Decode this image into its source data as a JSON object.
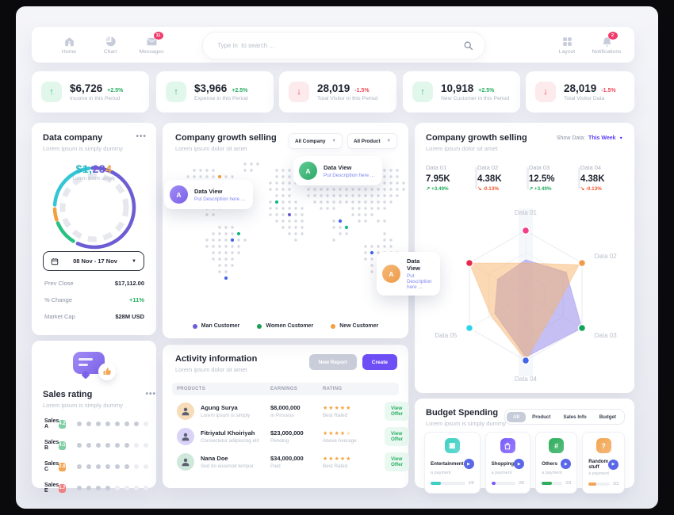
{
  "nav": {
    "items": [
      {
        "label": "Home",
        "icon": "home-icon",
        "badge": null
      },
      {
        "label": "Chart",
        "icon": "chart-icon",
        "badge": null
      },
      {
        "label": "Messages",
        "icon": "messages-icon",
        "badge": "11"
      }
    ],
    "search": {
      "placeholder": "Type in  to search ..."
    },
    "right_items": [
      {
        "label": "Layout",
        "icon": "layout-icon",
        "badge": null
      },
      {
        "label": "Notifications",
        "icon": "notifications-icon",
        "badge": "2"
      }
    ]
  },
  "stats": [
    {
      "value": "$6,726",
      "delta": "+2.5%",
      "label": "Income in this Period",
      "direction": "up"
    },
    {
      "value": "$3,966",
      "delta": "+2.5%",
      "label": "Expense in this Period",
      "direction": "up"
    },
    {
      "value": "28,019",
      "delta": "-1.5%",
      "label": "Total Visitor in this Period",
      "direction": "down"
    },
    {
      "value": "10,918",
      "delta": "+2.5%",
      "label": "New Customer in this Period",
      "direction": "up"
    },
    {
      "value": "28,019",
      "delta": "-1.5%",
      "label": "Total Visitor Data",
      "direction": "down"
    }
  ],
  "data_company": {
    "title": "Data company",
    "subtitle": "Lorem ipsum is simply dummy",
    "center_value_parts": [
      {
        "text": "$1,",
        "color": "#2bb8c4"
      },
      {
        "text": "23",
        "color": "#6c5dd3"
      },
      {
        "text": "4",
        "color": "#f2a03d"
      }
    ],
    "center_caption": "Lorem ipsum simply",
    "date_range": "08 Nov - 17 Nov",
    "rows": [
      {
        "label": "Prev Close",
        "value": "$17,112.00",
        "color": "#232734"
      },
      {
        "label": "% Change",
        "value": "+11%",
        "color": "#27ae60"
      },
      {
        "label": "Market Cap",
        "value": "$28M USD",
        "color": "#232734"
      }
    ]
  },
  "sales_rating": {
    "title": "Sales rating",
    "subtitle": "Lorem ipsum is simply dummy",
    "dots_total": 8,
    "rows": [
      {
        "label": "Sales A",
        "score": "4.2",
        "badge_color": "#7ed0a4",
        "filled": 7
      },
      {
        "label": "Sales B",
        "score": "4.1",
        "badge_color": "#7ed0a4",
        "filled": 6
      },
      {
        "label": "Sales C",
        "score": "2.8",
        "badge_color": "#f2a654",
        "filled": 6
      },
      {
        "label": "Sales E",
        "score": "1.7",
        "badge_color": "#ef8080",
        "filled": 4
      }
    ]
  },
  "growth_map": {
    "title": "Company growth selling",
    "subtitle": "Lorem ipsum dolor sit amet",
    "filters": [
      "All Company",
      "All Product"
    ],
    "callouts": [
      {
        "avatar": "A",
        "avatar_color1": "#a18cf5",
        "avatar_color2": "#7b61e8",
        "title": "Data View",
        "desc": "Put Description here ..."
      },
      {
        "avatar": "A",
        "avatar_color1": "#5ecb93",
        "avatar_color2": "#2fa76a",
        "title": "Data View",
        "desc": "Put Description here ..."
      },
      {
        "avatar": "A",
        "avatar_color1": "#f5b978",
        "avatar_color2": "#ee9a48",
        "title": "Data View",
        "desc": "Put Description here ..."
      }
    ],
    "legend": [
      {
        "label": "Man Customer",
        "color": "#6c5dd3"
      },
      {
        "label": "Women Customer",
        "color": "#1aa053"
      },
      {
        "label": "New Customer",
        "color": "#f2a03d"
      }
    ]
  },
  "activity": {
    "title": "Activity information",
    "subtitle": "Lorem ipsum dolor sit amet",
    "buttons": [
      {
        "label": "New Report",
        "style": "gray"
      },
      {
        "label": "Create",
        "style": "purple"
      }
    ],
    "columns": [
      "PRODUCTS",
      "EARNINGS",
      "RATING"
    ],
    "rows": [
      {
        "name": "Agung Surya",
        "desc": "Lorem ipsum is simply",
        "earning": "$8,000,000",
        "status": "In Process",
        "stars": 5,
        "rating_label": "Best Rated",
        "action": "View Offer",
        "avatar_bg": "#f6dcb8"
      },
      {
        "name": "Fitriyatul Khoiriyah",
        "desc": "Consectetur adipiscing elit",
        "earning": "$23,000,000",
        "status": "Pending",
        "stars": 4.5,
        "rating_label": "Above Average",
        "action": "View Offer",
        "avatar_bg": "#d9d3f8"
      },
      {
        "name": "Nana Doe",
        "desc": "Sed do eiusmod tempor",
        "earning": "$34,000,000",
        "status": "Paid",
        "stars": 5,
        "rating_label": "Best Rated",
        "action": "View Offer",
        "avatar_bg": "#cfe8dc"
      }
    ]
  },
  "growth_radar": {
    "title": "Company growth selling",
    "subtitle": "Lorem ipsum dolor sit amet",
    "show_data_label": "Show Data:",
    "show_data_value": "This Week",
    "stats": [
      {
        "label": "Data 01",
        "value": "7.95K",
        "delta": "+3.49%",
        "direction": "up"
      },
      {
        "label": "Data 02",
        "value": "4.38K",
        "delta": "-0.13%",
        "direction": "down"
      },
      {
        "label": "Data 03",
        "value": "12.5%",
        "delta": "+3.49%",
        "direction": "up"
      },
      {
        "label": "Data 04",
        "value": "4.38K",
        "delta": "-0.13%",
        "direction": "down"
      }
    ]
  },
  "budget": {
    "title": "Budget Spending",
    "subtitle": "Lorem ipsum is simply dummy",
    "tabs": [
      {
        "label": "All",
        "active": true
      },
      {
        "label": "Product",
        "active": false
      },
      {
        "label": "Sales Info",
        "active": false
      },
      {
        "label": "Budget",
        "active": false
      }
    ],
    "cards": [
      {
        "name": "Entertainment",
        "sub": "a payment",
        "fraction": "1/6",
        "progress": 0.3,
        "color": "#3fd0c3",
        "icon": "ticket-icon"
      },
      {
        "name": "Shopping",
        "sub": "a payment",
        "fraction": "2/6",
        "progress": 0.18,
        "color": "#7c5cfa",
        "icon": "bag-icon"
      },
      {
        "name": "Others",
        "sub": "a payment",
        "fraction": "2/3",
        "progress": 0.5,
        "color": "#2fae5d",
        "icon": "hash-icon"
      },
      {
        "name": "Random stuff",
        "sub": "a payment",
        "fraction": "3/3",
        "progress": 0.38,
        "color": "#f2a654",
        "icon": "question-icon"
      }
    ]
  },
  "chart_data": [
    {
      "type": "pie",
      "subtype": "donut",
      "title": "Data company donut",
      "center_label": "$1,234",
      "segments": [
        {
          "label": "purple",
          "color": "#6c5dd3",
          "start_deg": 357,
          "end_deg": 205,
          "share_pct": 57.8
        },
        {
          "label": "green",
          "color": "#27c281",
          "start_deg": 212,
          "end_deg": 247,
          "share_pct": 9.7
        },
        {
          "label": "orange",
          "color": "#f2a03d",
          "start_deg": 252,
          "end_deg": 268,
          "share_pct": 4.4
        },
        {
          "label": "teal",
          "color": "#33c6d6",
          "start_deg": 274,
          "end_deg": 352,
          "share_pct": 21.7
        }
      ]
    },
    {
      "type": "radar",
      "axes": [
        "Data 01",
        "Data 02",
        "Data 03",
        "Data 04",
        "Data 05",
        "Data 06"
      ],
      "axis_labels_visible": [
        "Data 01",
        "Data 02",
        "Data 03",
        "Data 04",
        "Data 05",
        ""
      ],
      "max": 1,
      "series": [
        {
          "name": "series-purple",
          "color": "#8b80e8",
          "fill_opacity": 0.5,
          "values": [
            0.55,
            0.72,
            1.0,
            0.95,
            0.55,
            0.5
          ]
        },
        {
          "name": "series-orange",
          "color": "#f7b36a",
          "fill_opacity": 0.5,
          "values": [
            0.5,
            0.95,
            0.5,
            1.0,
            0.62,
            1.0
          ]
        }
      ],
      "point_colors": [
        "#f23f87",
        "#f2994a",
        "#13a35a",
        "#4263eb",
        "#2bd4ee",
        "#e8274b"
      ]
    }
  ]
}
